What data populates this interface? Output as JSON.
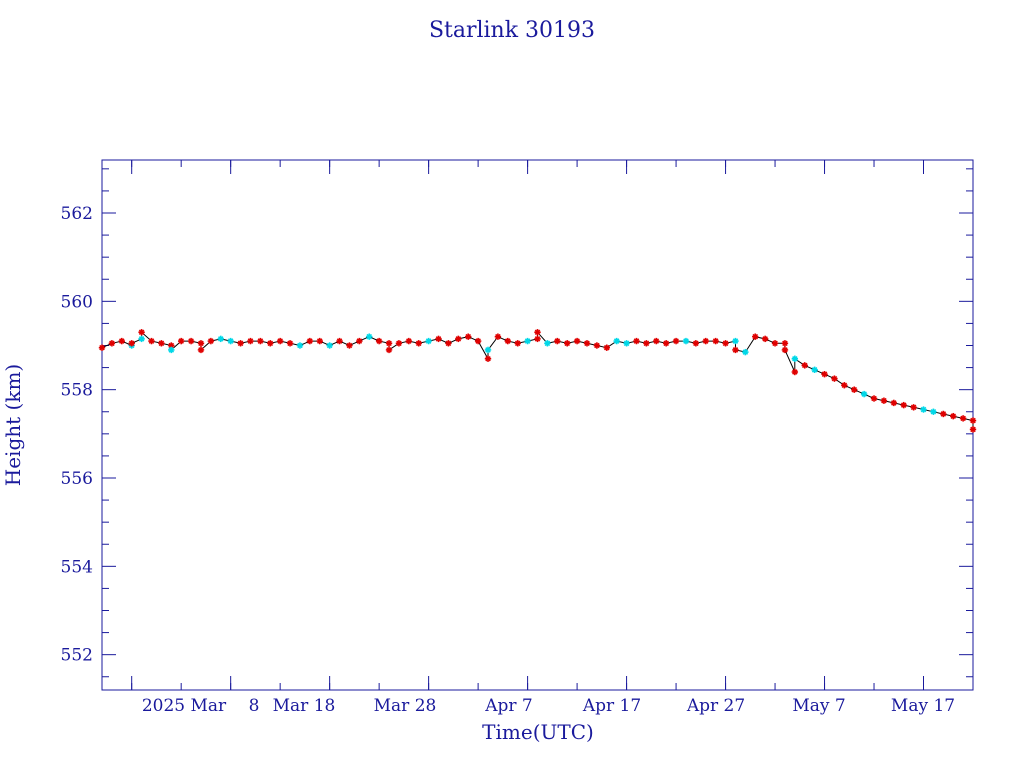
{
  "colors": {
    "axis": "#1a1a9c",
    "text": "#1a1a9c",
    "line": "#000000",
    "marker_primary": "#e00000",
    "marker_secondary": "#00d8e8"
  },
  "chart_data": {
    "type": "line",
    "title": "Starlink 30193",
    "xlabel": "Time(UTC)",
    "ylabel": "Height (km)",
    "x_scale": "time",
    "xlim": [
      "2025-02-23",
      "2025-05-22"
    ],
    "ylim": [
      551.2,
      563.2
    ],
    "grid": false,
    "legend": "none",
    "x_ticks": [
      {
        "date": "2025-03-02",
        "label": "2025 Mar  "
      },
      {
        "date": "2025-03-08",
        "label": "8"
      },
      {
        "date": "2025-03-18",
        "label": "Mar 18"
      },
      {
        "date": "2025-03-28",
        "label": "Mar 28"
      },
      {
        "date": "2025-04-07",
        "label": "Apr  7"
      },
      {
        "date": "2025-04-17",
        "label": "Apr 17"
      },
      {
        "date": "2025-04-27",
        "label": "Apr 27"
      },
      {
        "date": "2025-05-07",
        "label": "May  7"
      },
      {
        "date": "2025-05-17",
        "label": "May 17"
      }
    ],
    "y_ticks": [
      552,
      554,
      556,
      558,
      560,
      562
    ],
    "series": [
      {
        "marker": "asterisk",
        "points": [
          [
            "2025-02-23",
            558.95
          ],
          [
            "2025-02-24",
            559.05
          ],
          [
            "2025-02-25",
            559.1
          ],
          [
            "2025-02-26",
            559.0
          ],
          [
            "2025-02-26",
            559.05
          ],
          [
            "2025-02-27",
            559.15
          ],
          [
            "2025-02-27",
            559.3
          ],
          [
            "2025-02-28",
            559.1
          ],
          [
            "2025-03-01",
            559.05
          ],
          [
            "2025-03-02",
            559.0
          ],
          [
            "2025-03-02",
            558.9
          ],
          [
            "2025-03-03",
            559.1
          ],
          [
            "2025-03-04",
            559.1
          ],
          [
            "2025-03-05",
            559.05
          ],
          [
            "2025-03-05",
            558.9
          ],
          [
            "2025-03-06",
            559.1
          ],
          [
            "2025-03-07",
            559.15
          ],
          [
            "2025-03-08",
            559.1
          ],
          [
            "2025-03-09",
            559.05
          ],
          [
            "2025-03-10",
            559.1
          ],
          [
            "2025-03-11",
            559.1
          ],
          [
            "2025-03-12",
            559.05
          ],
          [
            "2025-03-13",
            559.1
          ],
          [
            "2025-03-14",
            559.05
          ],
          [
            "2025-03-15",
            559.0
          ],
          [
            "2025-03-16",
            559.1
          ],
          [
            "2025-03-17",
            559.1
          ],
          [
            "2025-03-18",
            559.0
          ],
          [
            "2025-03-19",
            559.1
          ],
          [
            "2025-03-20",
            559.0
          ],
          [
            "2025-03-21",
            559.1
          ],
          [
            "2025-03-22",
            559.2
          ],
          [
            "2025-03-23",
            559.1
          ],
          [
            "2025-03-24",
            559.05
          ],
          [
            "2025-03-24",
            558.9
          ],
          [
            "2025-03-25",
            559.05
          ],
          [
            "2025-03-26",
            559.1
          ],
          [
            "2025-03-27",
            559.05
          ],
          [
            "2025-03-28",
            559.1
          ],
          [
            "2025-03-29",
            559.15
          ],
          [
            "2025-03-30",
            559.05
          ],
          [
            "2025-03-31",
            559.15
          ],
          [
            "2025-04-01",
            559.2
          ],
          [
            "2025-04-02",
            559.1
          ],
          [
            "2025-04-03",
            558.7
          ],
          [
            "2025-04-03",
            558.9
          ],
          [
            "2025-04-04",
            559.2
          ],
          [
            "2025-04-05",
            559.1
          ],
          [
            "2025-04-06",
            559.05
          ],
          [
            "2025-04-07",
            559.1
          ],
          [
            "2025-04-08",
            559.15
          ],
          [
            "2025-04-08",
            559.3
          ],
          [
            "2025-04-09",
            559.05
          ],
          [
            "2025-04-10",
            559.1
          ],
          [
            "2025-04-11",
            559.05
          ],
          [
            "2025-04-12",
            559.1
          ],
          [
            "2025-04-13",
            559.05
          ],
          [
            "2025-04-14",
            559.0
          ],
          [
            "2025-04-15",
            558.95
          ],
          [
            "2025-04-16",
            559.1
          ],
          [
            "2025-04-17",
            559.05
          ],
          [
            "2025-04-18",
            559.1
          ],
          [
            "2025-04-19",
            559.05
          ],
          [
            "2025-04-20",
            559.1
          ],
          [
            "2025-04-21",
            559.05
          ],
          [
            "2025-04-22",
            559.1
          ],
          [
            "2025-04-23",
            559.1
          ],
          [
            "2025-04-24",
            559.05
          ],
          [
            "2025-04-25",
            559.1
          ],
          [
            "2025-04-26",
            559.1
          ],
          [
            "2025-04-27",
            559.05
          ],
          [
            "2025-04-28",
            559.1
          ],
          [
            "2025-04-28",
            558.9
          ],
          [
            "2025-04-29",
            558.85
          ],
          [
            "2025-04-30",
            559.2
          ],
          [
            "2025-05-01",
            559.15
          ],
          [
            "2025-05-02",
            559.05
          ],
          [
            "2025-05-03",
            559.05
          ],
          [
            "2025-05-03",
            558.9
          ],
          [
            "2025-05-04",
            558.4
          ],
          [
            "2025-05-04",
            558.7
          ],
          [
            "2025-05-05",
            558.55
          ],
          [
            "2025-05-06",
            558.45
          ],
          [
            "2025-05-07",
            558.35
          ],
          [
            "2025-05-08",
            558.25
          ],
          [
            "2025-05-09",
            558.1
          ],
          [
            "2025-05-10",
            558.0
          ],
          [
            "2025-05-11",
            557.9
          ],
          [
            "2025-05-12",
            557.8
          ],
          [
            "2025-05-13",
            557.75
          ],
          [
            "2025-05-14",
            557.7
          ],
          [
            "2025-05-15",
            557.65
          ],
          [
            "2025-05-16",
            557.6
          ],
          [
            "2025-05-17",
            557.55
          ],
          [
            "2025-05-18",
            557.5
          ],
          [
            "2025-05-19",
            557.45
          ],
          [
            "2025-05-20",
            557.4
          ],
          [
            "2025-05-21",
            557.35
          ],
          [
            "2025-05-22",
            557.3
          ],
          [
            "2025-05-22",
            557.1
          ]
        ]
      }
    ]
  }
}
